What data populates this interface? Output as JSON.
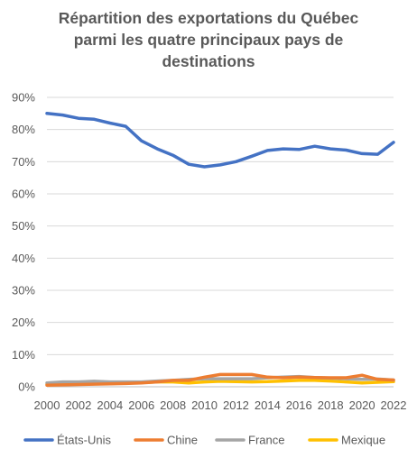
{
  "chart_data": {
    "type": "line",
    "title_lines": [
      "Répartition des exportations du Québec",
      "parmi les quatre principaux pays de",
      "destinations"
    ],
    "x": [
      2000,
      2001,
      2002,
      2003,
      2004,
      2005,
      2006,
      2007,
      2008,
      2009,
      2010,
      2011,
      2012,
      2013,
      2014,
      2015,
      2016,
      2017,
      2018,
      2019,
      2020,
      2021,
      2022
    ],
    "x_tick_labels": [
      "2000",
      "2002",
      "2004",
      "2006",
      "2008",
      "2010",
      "2012",
      "2014",
      "2016",
      "2018",
      "2020",
      "2022"
    ],
    "y_tick_labels": [
      "0%",
      "10%",
      "20%",
      "30%",
      "40%",
      "50%",
      "60%",
      "70%",
      "80%",
      "90%"
    ],
    "ylim": [
      0,
      90
    ],
    "grid": true,
    "legend_position": "bottom",
    "series": [
      {
        "name": "États-Unis",
        "color": "#4472C4",
        "values": [
          85,
          84.5,
          83.5,
          83.2,
          82,
          81,
          76.5,
          74,
          72,
          69.2,
          68.4,
          69,
          70,
          71.7,
          73.5,
          74,
          73.8,
          74.8,
          74,
          73.6,
          72.5,
          72.3,
          76
        ]
      },
      {
        "name": "Chine",
        "color": "#ED7D31",
        "values": [
          0.5,
          0.6,
          0.7,
          0.8,
          0.9,
          1,
          1.2,
          1.5,
          2,
          2,
          3,
          3.8,
          3.8,
          3.8,
          3,
          2.8,
          3,
          2.9,
          2.8,
          2.8,
          3.6,
          2.3,
          2.1
        ]
      },
      {
        "name": "France",
        "color": "#A5A5A5",
        "values": [
          1.2,
          1.5,
          1.5,
          1.7,
          1.5,
          1.5,
          1.5,
          1.8,
          2,
          2.3,
          2.5,
          2.5,
          2.5,
          2.5,
          2.8,
          3,
          3.2,
          2.9,
          2.7,
          2.5,
          2.3,
          2.4,
          2.1
        ]
      },
      {
        "name": "Mexique",
        "color": "#FFC000",
        "values": [
          0.8,
          0.9,
          1,
          1,
          1,
          1.2,
          1.3,
          1.5,
          1.5,
          1.2,
          1.5,
          1.7,
          1.6,
          1.5,
          1.6,
          1.8,
          2,
          2,
          1.8,
          1.5,
          1.2,
          1.4,
          1.6
        ]
      }
    ]
  }
}
